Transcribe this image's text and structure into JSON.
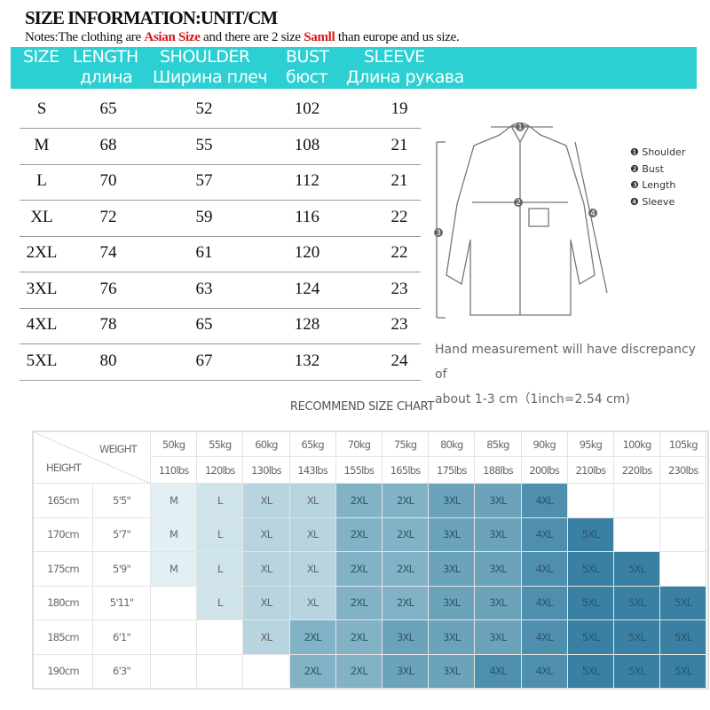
{
  "title": "SIZE INFORMATION:UNIT/CM",
  "notes": {
    "p1": "Notes:The clothing are ",
    "red1": "Asian Size",
    "p2": " and there are 2 size ",
    "red2": "Samll",
    "p3": " than europe and us size."
  },
  "header": {
    "en": [
      "SIZE",
      "LENGTH",
      "SHOULDER",
      "BUST",
      "SLEEVE"
    ],
    "ru": [
      "длина",
      "Ширина плеч",
      "бюст",
      "Длина рукава"
    ],
    "color": "#2ccfd2"
  },
  "size_table": [
    [
      "S",
      "65",
      "52",
      "102",
      "19"
    ],
    [
      "M",
      "68",
      "55",
      "108",
      "21"
    ],
    [
      "L",
      "70",
      "57",
      "112",
      "21"
    ],
    [
      "XL",
      "72",
      "59",
      "116",
      "22"
    ],
    [
      "2XL",
      "74",
      "61",
      "120",
      "22"
    ],
    [
      "3XL",
      "76",
      "63",
      "124",
      "23"
    ],
    [
      "4XL",
      "78",
      "65",
      "128",
      "23"
    ],
    [
      "5XL",
      "80",
      "67",
      "132",
      "24"
    ]
  ],
  "diagram_legend": [
    "❶ Shoulder",
    "❷ Bust",
    "❸ Length",
    "❹ Sleeve"
  ],
  "hand_note": [
    "Hand measurement will have discrepancy of",
    "about 1-3 cm（1inch=2.54 cm)"
  ],
  "recommend": {
    "title": "RECOMMEND SIZE CHART",
    "weight_label": "WEIGHT",
    "height_label": "HEIGHT",
    "kg": [
      "50kg",
      "55kg",
      "60kg",
      "65kg",
      "70kg",
      "75kg",
      "80kg",
      "85kg",
      "90kg",
      "95kg",
      "100kg",
      "105kg"
    ],
    "lbs": [
      "110lbs",
      "120lbs",
      "130lbs",
      "143lbs",
      "155lbs",
      "165lbs",
      "175lbs",
      "188lbs",
      "200lbs",
      "210lbs",
      "220lbs",
      "230lbs"
    ],
    "rows": [
      {
        "cm": "165cm",
        "ft": "5'5\"",
        "sizes": [
          "M",
          "L",
          "XL",
          "XL",
          "2XL",
          "2XL",
          "3XL",
          "3XL",
          "4XL",
          "",
          "",
          ""
        ]
      },
      {
        "cm": "170cm",
        "ft": "5'7\"",
        "sizes": [
          "M",
          "L",
          "XL",
          "XL",
          "2XL",
          "2XL",
          "3XL",
          "3XL",
          "4XL",
          "5XL",
          "",
          ""
        ]
      },
      {
        "cm": "175cm",
        "ft": "5'9\"",
        "sizes": [
          "M",
          "L",
          "XL",
          "XL",
          "2XL",
          "2XL",
          "3XL",
          "3XL",
          "4XL",
          "5XL",
          "5XL",
          ""
        ]
      },
      {
        "cm": "180cm",
        "ft": "5'11\"",
        "sizes": [
          "",
          "L",
          "XL",
          "XL",
          "2XL",
          "2XL",
          "3XL",
          "3XL",
          "4XL",
          "5XL",
          "5XL",
          "5XL"
        ]
      },
      {
        "cm": "185cm",
        "ft": "6'1\"",
        "sizes": [
          "",
          "",
          "XL",
          "2XL",
          "2XL",
          "3XL",
          "3XL",
          "3XL",
          "4XL",
          "5XL",
          "5XL",
          "5XL"
        ]
      },
      {
        "cm": "190cm",
        "ft": "6'3\"",
        "sizes": [
          "",
          "",
          "",
          "2XL",
          "2XL",
          "3XL",
          "3XL",
          "4XL",
          "4XL",
          "5XL",
          "5XL",
          "5XL"
        ]
      }
    ],
    "colors": {
      "M": "#e2f0f3",
      "L": "#cfe3ea",
      "XL": "#b7d4df",
      "2XL": "#82b2c6",
      "3XL": "#6ba3bb",
      "4XL": "#4f8fae",
      "5XL": "#3a80a2"
    }
  }
}
